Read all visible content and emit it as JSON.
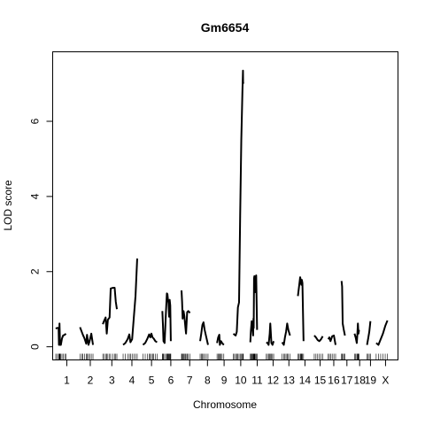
{
  "chart_data": {
    "type": "line",
    "title": "Gm6654",
    "xlabel": "Chromosome",
    "ylabel": "LOD score",
    "ylim": [
      -0.35,
      7.85
    ],
    "yticks": [
      0,
      2,
      4,
      6
    ],
    "grid": false,
    "legend": "none",
    "line_color": "#000000",
    "chromosomes": [
      {
        "label": "1",
        "length": 195,
        "series": [
          {
            "pos": [
              0,
              10,
              25,
              28,
              33,
              38,
              45,
              55,
              65,
              80,
              90
            ],
            "lod": [
              0.48,
              0.5,
              0.5,
              0.05,
              0.62,
              0.05,
              0.05,
              0.22,
              0.3,
              0.32,
              0.35
            ]
          }
        ]
      },
      {
        "label": "2",
        "length": 182,
        "series": [
          {
            "pos": [
              0,
              15,
              25,
              40,
              55,
              62,
              75,
              85,
              100,
              115
            ],
            "lod": [
              0.52,
              0.4,
              0.32,
              0.22,
              0.08,
              0.32,
              0.05,
              0.15,
              0.35,
              0.05
            ]
          }
        ]
      },
      {
        "label": "3",
        "length": 160,
        "series": [
          {
            "pos": [
              0,
              10,
              25,
              35,
              45,
              60,
              70,
              90,
              105,
              115,
              125
            ],
            "lod": [
              0.6,
              0.68,
              0.78,
              0.35,
              0.72,
              0.78,
              1.55,
              1.57,
              1.57,
              1.2,
              1.0
            ]
          }
        ]
      },
      {
        "label": "4",
        "length": 156,
        "series": [
          {
            "pos": [
              0,
              20,
              40,
              55,
              65,
              80,
              95,
              110,
              125
            ],
            "lod": [
              0.05,
              0.1,
              0.2,
              0.33,
              0.12,
              0.2,
              0.78,
              1.35,
              2.35
            ]
          }
        ]
      },
      {
        "label": "5",
        "length": 152,
        "series": [
          {
            "pos": [
              0,
              20,
              40,
              55,
              65,
              75,
              85,
              95,
              110,
              125
            ],
            "lod": [
              0.05,
              0.1,
              0.22,
              0.33,
              0.25,
              0.35,
              0.25,
              0.22,
              0.15,
              0.12
            ]
          }
        ]
      },
      {
        "label": "6",
        "length": 150,
        "series": [
          {
            "pos": [
              0,
              5,
              10,
              20,
              30,
              40,
              45,
              50,
              55,
              60,
              65,
              70,
              75
            ],
            "lod": [
              0.95,
              0.6,
              0.15,
              0.1,
              0.8,
              1.42,
              1.4,
              1.25,
              1.15,
              0.8,
              1.25,
              1.1,
              0.15
            ]
          }
        ]
      },
      {
        "label": "7",
        "length": 145,
        "series": [
          {
            "pos": [
              0,
              5,
              10,
              18,
              25,
              35,
              40,
              50,
              60,
              75
            ],
            "lod": [
              1.5,
              1.2,
              0.75,
              0.95,
              0.82,
              0.5,
              0.35,
              0.92,
              0.95,
              0.9
            ]
          }
        ]
      },
      {
        "label": "8",
        "length": 130,
        "series": [
          {
            "pos": [
              0,
              10,
              20,
              30,
              40,
              55,
              70
            ],
            "lod": [
              0.15,
              0.35,
              0.58,
              0.65,
              0.45,
              0.25,
              0.05
            ]
          }
        ]
      },
      {
        "label": "9",
        "length": 125,
        "series": [
          {
            "pos": [
              0,
              10,
              20,
              25,
              35,
              45,
              60
            ],
            "lod": [
              0.1,
              0.25,
              0.32,
              0.05,
              0.15,
              0.1,
              0.05
            ]
          }
        ]
      },
      {
        "label": "10",
        "length": 130,
        "series": [
          {
            "pos": [
              0,
              10,
              20,
              30,
              40,
              50,
              60,
              70,
              80,
              85,
              86,
              88
            ],
            "lod": [
              0.35,
              0.32,
              0.3,
              0.4,
              1.05,
              1.18,
              3.5,
              5.5,
              6.8,
              7.35,
              7.05,
              7.0
            ]
          }
        ]
      },
      {
        "label": "11",
        "length": 122,
        "series": [
          {
            "pos": [
              0,
              5,
              12,
              18,
              25,
              28,
              30,
              33,
              36,
              40,
              45,
              52,
              60
            ],
            "lod": [
              0.12,
              0.42,
              0.68,
              0.55,
              0.3,
              0.75,
              0.5,
              1.82,
              1.88,
              1.45,
              1.72,
              1.9,
              0.45
            ]
          }
        ]
      },
      {
        "label": "12",
        "length": 120,
        "series": [
          {
            "pos": [
              0,
              10,
              20,
              30,
              35,
              45,
              55,
              65
            ],
            "lod": [
              0.12,
              0.1,
              0.05,
              0.35,
              0.62,
              0.1,
              0.05,
              0.15
            ]
          }
        ]
      },
      {
        "label": "13",
        "length": 120,
        "series": [
          {
            "pos": [
              0,
              15,
              25,
              35,
              45,
              55,
              70
            ],
            "lod": [
              0.12,
              0.05,
              0.25,
              0.4,
              0.62,
              0.45,
              0.3
            ]
          }
        ]
      },
      {
        "label": "14",
        "length": 125,
        "series": [
          {
            "pos": [
              0,
              10,
              20,
              25,
              30,
              35,
              40,
              50
            ],
            "lod": [
              1.35,
              1.6,
              1.85,
              1.78,
              1.65,
              1.78,
              1.7,
              0.15
            ]
          }
        ]
      },
      {
        "label": "15",
        "length": 104,
        "series": [
          {
            "pos": [
              0,
              15,
              30,
              45,
              60,
              75
            ],
            "lod": [
              0.3,
              0.25,
              0.18,
              0.15,
              0.2,
              0.28
            ]
          }
        ]
      },
      {
        "label": "16",
        "length": 98,
        "series": [
          {
            "pos": [
              0,
              10,
              20,
              35,
              50,
              65
            ],
            "lod": [
              0.2,
              0.25,
              0.15,
              0.28,
              0.3,
              0.05
            ]
          }
        ]
      },
      {
        "label": "17",
        "length": 95,
        "series": [
          {
            "pos": [
              0,
              5,
              10,
              20,
              30
            ],
            "lod": [
              1.75,
              1.6,
              0.62,
              0.45,
              0.3
            ]
          }
        ]
      },
      {
        "label": "18",
        "length": 91,
        "series": [
          {
            "pos": [
              0,
              10,
              20,
              25,
              30,
              35,
              40
            ],
            "lod": [
              0.35,
              0.25,
              0.1,
              0.32,
              0.62,
              0.35,
              0.45
            ]
          }
        ]
      },
      {
        "label": "19",
        "length": 61,
        "series": [
          {
            "pos": [
              0,
              10,
              20,
              30
            ],
            "lod": [
              0.05,
              0.22,
              0.4,
              0.68
            ]
          }
        ]
      },
      {
        "label": "X",
        "length": 166,
        "series": [
          {
            "pos": [
              0,
              20,
              40,
              60,
              80,
              100
            ],
            "lod": [
              0.1,
              0.05,
              0.2,
              0.35,
              0.55,
              0.7
            ]
          }
        ]
      }
    ]
  }
}
